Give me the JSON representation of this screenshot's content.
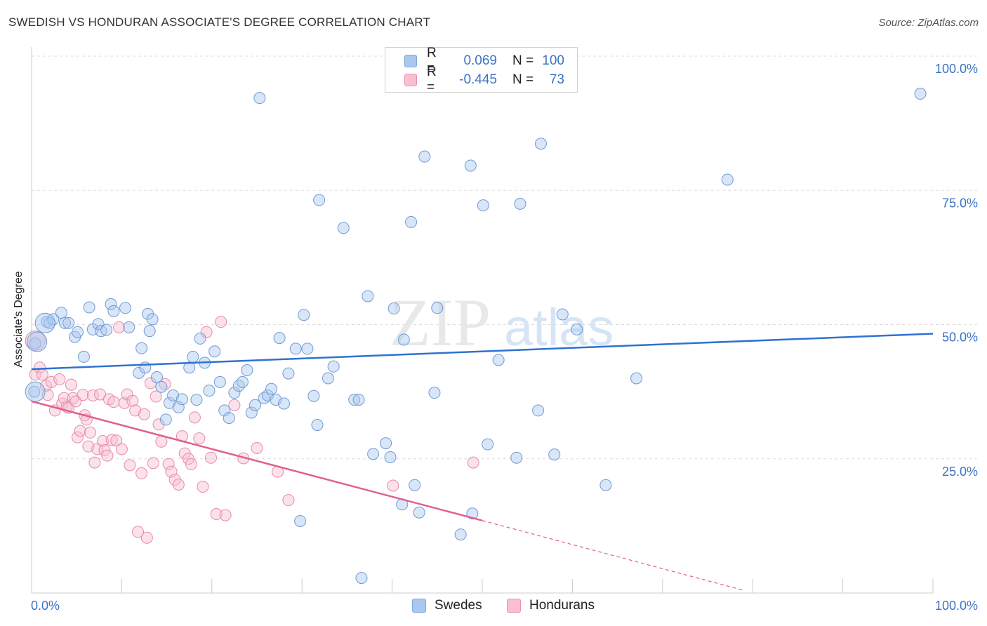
{
  "header": {
    "title": "SWEDISH VS HONDURAN ASSOCIATE'S DEGREE CORRELATION CHART",
    "source": "Source: ZipAtlas.com"
  },
  "watermark": {
    "text_zip": "ZIP",
    "text_atlas": "atlas"
  },
  "legend": {
    "rows": [
      {
        "r_label": "R =",
        "r_value": "0.069",
        "n_label": "N =",
        "n_value": "100",
        "color": "#aac8ee",
        "border": "#7aa6dd"
      },
      {
        "r_label": "R =",
        "r_value": "-0.445",
        "n_label": "N =",
        "n_value": "73",
        "color": "#f7bfd0",
        "border": "#ec92b0"
      }
    ]
  },
  "bottom_legend": [
    {
      "label": "Swedes",
      "color": "#aac8ee",
      "border": "#7aa6dd"
    },
    {
      "label": "Hondurans",
      "color": "#f7bfd0",
      "border": "#ec92b0"
    }
  ],
  "chart_data": {
    "type": "scatter",
    "title": "SWEDISH VS HONDURAN ASSOCIATE'S DEGREE CORRELATION CHART",
    "xlabel": "",
    "ylabel": "Associate's Degree",
    "xlim": [
      0,
      100
    ],
    "ylim": [
      0,
      100
    ],
    "x_tick_labels": [
      "0.0%",
      "100.0%"
    ],
    "y_tick_labels": [
      "25.0%",
      "50.0%",
      "75.0%",
      "100.0%"
    ],
    "y_ticks": [
      25,
      50,
      75,
      100
    ],
    "grid": true,
    "colors": {
      "swedes": "#aac8ee",
      "swedes_line": "#2f72d0",
      "hondurans": "#f7bfd0",
      "hondurans_line": "#e0608e",
      "axis_text": "#3b73c4"
    },
    "series": [
      {
        "name": "Swedes",
        "trend": {
          "x0": 0,
          "y0": 41.7,
          "x1": 100,
          "y1": 48.3
        },
        "points": [
          [
            0.3,
            37.5
          ],
          [
            0.4,
            46.5
          ],
          [
            1.7,
            50.5
          ],
          [
            2.0,
            50.3
          ],
          [
            2.4,
            51.0
          ],
          [
            3.3,
            52.2
          ],
          [
            3.7,
            50.3
          ],
          [
            4.1,
            50.3
          ],
          [
            4.8,
            47.7
          ],
          [
            5.1,
            48.6
          ],
          [
            5.8,
            44.0
          ],
          [
            6.4,
            53.2
          ],
          [
            6.8,
            49.1
          ],
          [
            7.4,
            50.1
          ],
          [
            7.7,
            48.8
          ],
          [
            8.3,
            49.0
          ],
          [
            8.8,
            53.8
          ],
          [
            9.1,
            52.5
          ],
          [
            10.4,
            53.1
          ],
          [
            10.8,
            49.5
          ],
          [
            11.9,
            41.0
          ],
          [
            12.2,
            45.6
          ],
          [
            12.6,
            42.0
          ],
          [
            12.9,
            52.0
          ],
          [
            13.1,
            48.8
          ],
          [
            13.4,
            51.0
          ],
          [
            13.9,
            40.2
          ],
          [
            14.4,
            38.4
          ],
          [
            14.9,
            32.3
          ],
          [
            15.3,
            35.4
          ],
          [
            15.7,
            36.8
          ],
          [
            16.3,
            34.6
          ],
          [
            16.7,
            36.1
          ],
          [
            17.5,
            42.0
          ],
          [
            17.9,
            44.0
          ],
          [
            18.3,
            36.0
          ],
          [
            18.7,
            47.4
          ],
          [
            19.2,
            42.9
          ],
          [
            19.7,
            37.7
          ],
          [
            20.3,
            45.0
          ],
          [
            20.9,
            39.3
          ],
          [
            21.4,
            34.0
          ],
          [
            21.9,
            32.6
          ],
          [
            22.5,
            37.3
          ],
          [
            23.0,
            38.6
          ],
          [
            23.4,
            39.3
          ],
          [
            23.9,
            41.5
          ],
          [
            24.4,
            33.6
          ],
          [
            24.8,
            35.0
          ],
          [
            25.3,
            92.2
          ],
          [
            25.8,
            36.3
          ],
          [
            26.2,
            36.8
          ],
          [
            26.6,
            38.0
          ],
          [
            27.1,
            36.0
          ],
          [
            27.5,
            47.5
          ],
          [
            28.0,
            35.3
          ],
          [
            28.5,
            40.9
          ],
          [
            29.3,
            45.5
          ],
          [
            29.8,
            13.4
          ],
          [
            30.2,
            51.8
          ],
          [
            30.6,
            45.5
          ],
          [
            31.3,
            36.7
          ],
          [
            31.7,
            31.3
          ],
          [
            31.9,
            73.2
          ],
          [
            32.9,
            40.0
          ],
          [
            33.5,
            42.2
          ],
          [
            34.6,
            68.0
          ],
          [
            35.8,
            36.0
          ],
          [
            36.3,
            36.0
          ],
          [
            36.6,
            2.8
          ],
          [
            37.3,
            55.3
          ],
          [
            37.9,
            25.9
          ],
          [
            39.3,
            27.9
          ],
          [
            39.8,
            25.3
          ],
          [
            40.2,
            53.0
          ],
          [
            41.1,
            16.5
          ],
          [
            41.3,
            47.2
          ],
          [
            42.1,
            69.1
          ],
          [
            42.5,
            20.1
          ],
          [
            43.0,
            15.0
          ],
          [
            43.6,
            81.3
          ],
          [
            44.7,
            37.3
          ],
          [
            45.0,
            53.1
          ],
          [
            47.6,
            10.9
          ],
          [
            48.7,
            79.6
          ],
          [
            48.9,
            14.8
          ],
          [
            50.1,
            72.2
          ],
          [
            50.6,
            27.7
          ],
          [
            51.8,
            43.4
          ],
          [
            53.8,
            25.2
          ],
          [
            54.2,
            72.5
          ],
          [
            56.2,
            34.0
          ],
          [
            56.5,
            83.7
          ],
          [
            58.0,
            25.8
          ],
          [
            58.9,
            51.9
          ],
          [
            60.5,
            49.1
          ],
          [
            63.7,
            20.1
          ],
          [
            67.1,
            40.0
          ],
          [
            77.2,
            77.0
          ],
          [
            98.6,
            93.0
          ]
        ],
        "large_points": [
          [
            0.4,
            37.5
          ],
          [
            0.6,
            46.8
          ],
          [
            1.5,
            50.3
          ]
        ]
      },
      {
        "name": "Hondurans",
        "trend": {
          "x0": 0,
          "y0": 35.7,
          "x1": 50.0,
          "y1": 13.5,
          "dash_x1": 79.0,
          "dash_y1": 0.5
        },
        "points": [
          [
            0.4,
            40.7
          ],
          [
            0.9,
            42.0
          ],
          [
            1.2,
            40.7
          ],
          [
            1.6,
            38.6
          ],
          [
            1.8,
            36.9
          ],
          [
            2.2,
            39.3
          ],
          [
            2.6,
            34.0
          ],
          [
            3.1,
            39.8
          ],
          [
            3.4,
            35.3
          ],
          [
            3.6,
            36.3
          ],
          [
            3.9,
            34.7
          ],
          [
            4.1,
            34.5
          ],
          [
            4.4,
            38.8
          ],
          [
            4.6,
            36.3
          ],
          [
            4.9,
            35.7
          ],
          [
            5.1,
            29.0
          ],
          [
            5.4,
            30.2
          ],
          [
            5.7,
            36.9
          ],
          [
            5.9,
            33.1
          ],
          [
            6.1,
            32.3
          ],
          [
            6.3,
            27.3
          ],
          [
            6.5,
            29.9
          ],
          [
            6.8,
            36.8
          ],
          [
            7.0,
            24.3
          ],
          [
            7.3,
            26.8
          ],
          [
            7.6,
            37.0
          ],
          [
            7.9,
            28.3
          ],
          [
            8.1,
            26.6
          ],
          [
            8.4,
            25.6
          ],
          [
            8.6,
            36.1
          ],
          [
            8.9,
            28.5
          ],
          [
            9.1,
            35.6
          ],
          [
            9.4,
            28.4
          ],
          [
            9.7,
            49.5
          ],
          [
            10.0,
            26.8
          ],
          [
            10.3,
            35.4
          ],
          [
            10.6,
            37.0
          ],
          [
            10.9,
            23.8
          ],
          [
            11.2,
            35.8
          ],
          [
            11.5,
            34.0
          ],
          [
            11.8,
            11.4
          ],
          [
            12.2,
            22.3
          ],
          [
            12.5,
            33.3
          ],
          [
            12.8,
            10.3
          ],
          [
            13.2,
            39.1
          ],
          [
            13.5,
            24.2
          ],
          [
            13.8,
            36.6
          ],
          [
            14.1,
            31.4
          ],
          [
            14.4,
            28.2
          ],
          [
            14.8,
            38.9
          ],
          [
            15.2,
            24.0
          ],
          [
            15.5,
            22.6
          ],
          [
            15.9,
            21.1
          ],
          [
            16.3,
            20.2
          ],
          [
            16.7,
            29.2
          ],
          [
            17.0,
            26.0
          ],
          [
            17.4,
            25.0
          ],
          [
            17.7,
            24.0
          ],
          [
            18.1,
            32.7
          ],
          [
            18.6,
            28.8
          ],
          [
            19.0,
            19.8
          ],
          [
            19.4,
            48.6
          ],
          [
            19.9,
            25.2
          ],
          [
            20.5,
            14.7
          ],
          [
            21.0,
            50.5
          ],
          [
            21.5,
            14.5
          ],
          [
            22.5,
            35.0
          ],
          [
            23.5,
            25.1
          ],
          [
            25.0,
            27.0
          ],
          [
            27.3,
            22.6
          ],
          [
            28.5,
            17.3
          ],
          [
            40.1,
            20.0
          ],
          [
            49.0,
            24.3
          ]
        ],
        "large_points": [
          [
            0.4,
            47.0
          ]
        ]
      }
    ]
  }
}
